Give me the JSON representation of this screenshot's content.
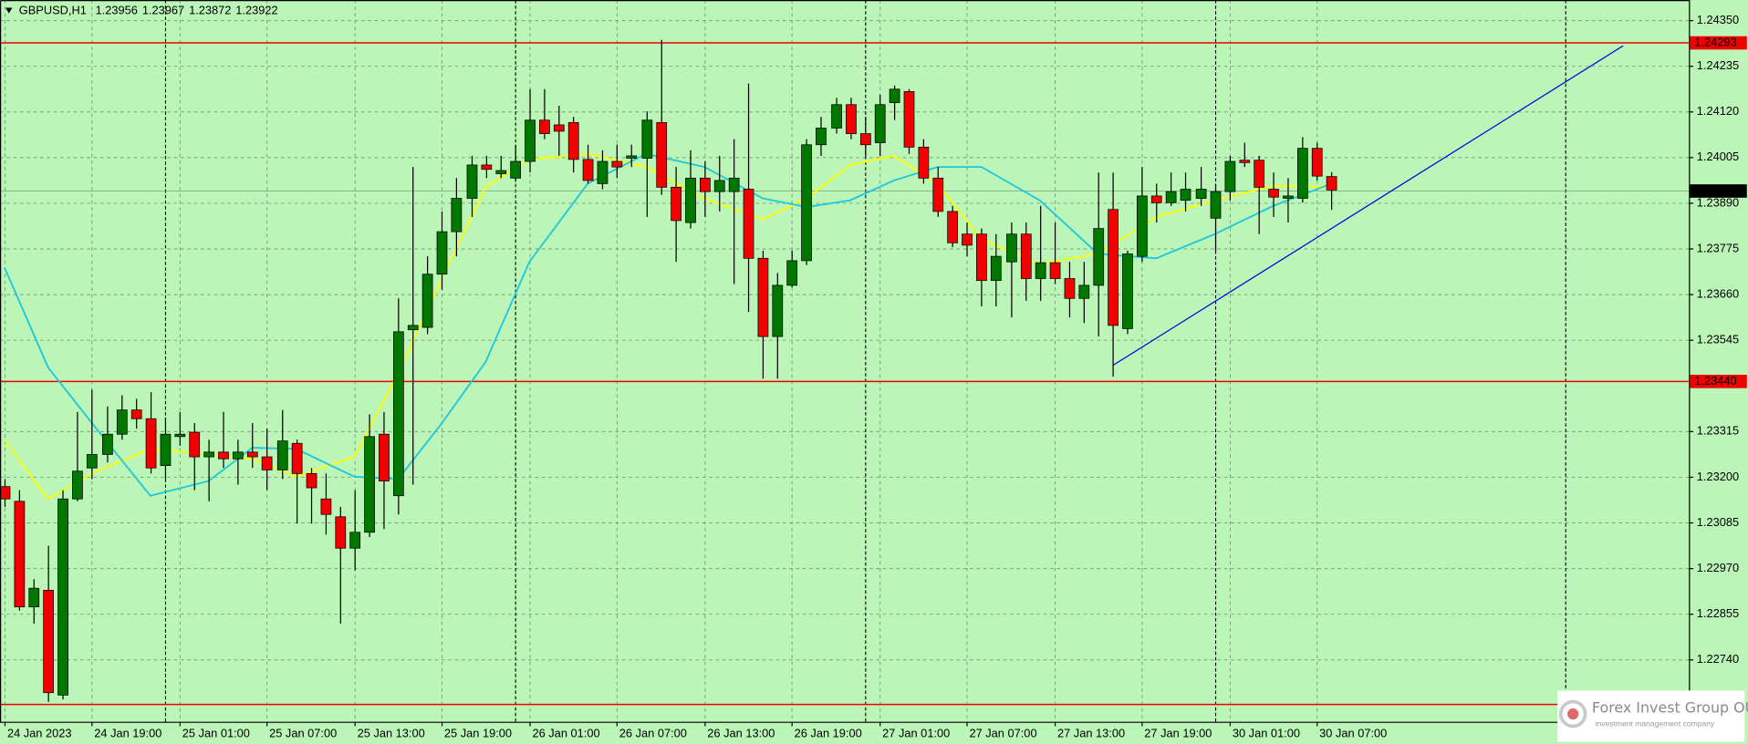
{
  "chart_data": {
    "type": "candlestick",
    "title": "GBPUSD,H1",
    "ohlc_header": [
      1.23956,
      1.23967,
      1.23872,
      1.23922
    ],
    "categories": [
      "24 Jan 2023",
      null,
      null,
      null,
      null,
      null,
      "24 Jan 19:00",
      null,
      null,
      null,
      null,
      null,
      "25 Jan 01:00",
      null,
      null,
      null,
      null,
      null,
      "25 Jan 07:00",
      null,
      null,
      null,
      null,
      null,
      "25 Jan 13:00",
      null,
      null,
      null,
      null,
      null,
      "25 Jan 19:00",
      null,
      null,
      null,
      null,
      null,
      "26 Jan 01:00",
      null,
      null,
      null,
      null,
      null,
      "26 Jan 07:00",
      null,
      null,
      null,
      null,
      null,
      "26 Jan 13:00",
      null,
      null,
      null,
      null,
      null,
      "26 Jan 19:00",
      null,
      null,
      null,
      null,
      null,
      "27 Jan 01:00",
      null,
      null,
      null,
      null,
      null,
      "27 Jan 07:00",
      null,
      null,
      null,
      null,
      null,
      "27 Jan 13:00",
      null,
      null,
      null,
      null,
      null,
      "27 Jan 19:00",
      null,
      null,
      null,
      null,
      null,
      "30 Jan 01:00",
      null,
      null,
      null,
      null,
      null,
      "30 Jan 07:00",
      null
    ],
    "open": [
      1.23175,
      1.23138,
      1.22872,
      1.22914,
      1.2265,
      1.23144,
      1.23222,
      1.23256,
      1.23307,
      1.23368,
      1.23346,
      1.23228,
      1.23301,
      1.23312,
      1.2325,
      1.23262,
      1.23245,
      1.23262,
      1.2325,
      1.23217,
      1.23284,
      1.23208,
      1.23144,
      1.23099,
      1.2302,
      1.2306,
      1.23307,
      1.23152,
      1.2357,
      1.23576,
      1.2371,
      1.23817,
      1.23901,
      1.23985,
      1.23963,
      1.23952,
      1.23994,
      1.24098,
      1.24086,
      1.24092,
      1.23999,
      1.23938,
      1.23994,
      1.24002,
      1.24002,
      1.24092,
      1.23929,
      1.2384,
      1.23952,
      1.23918,
      1.23918,
      1.23924,
      1.2375,
      1.23553,
      1.23682,
      1.23744,
      1.24036,
      1.24078,
      1.24137,
      1.24064,
      1.24041,
      1.24142,
      1.2417,
      1.2403,
      1.23952,
      1.23868,
      1.23811,
      1.23811,
      1.23694,
      1.23741,
      1.23811,
      1.23699,
      1.23739,
      1.23699,
      1.23649,
      1.23682,
      1.23873,
      1.23573,
      1.23755,
      1.23907,
      1.2389,
      1.23896,
      1.23901,
      1.23851,
      1.23918,
      1.23997,
      1.23997,
      1.23924,
      1.23901,
      1.23901,
      1.24027,
      1.23956
    ],
    "high": [
      1.23194,
      1.23166,
      1.22942,
      1.23026,
      1.23166,
      1.23363,
      1.23419,
      1.23377,
      1.23405,
      1.23396,
      1.23413,
      1.23349,
      1.23363,
      1.23335,
      1.23293,
      1.23363,
      1.23293,
      1.23335,
      1.23321,
      1.23368,
      1.23293,
      1.23222,
      1.23208,
      1.23124,
      1.23166,
      1.23357,
      1.23363,
      1.23649,
      1.2398,
      1.23755,
      1.23868,
      1.23952,
      1.24008,
      1.24008,
      1.24008,
      1.24036,
      1.24176,
      1.24176,
      1.24134,
      1.24106,
      1.24036,
      1.24022,
      1.24036,
      1.24036,
      1.2412,
      1.243,
      1.2398,
      1.24022,
      1.23994,
      1.24008,
      1.2405,
      1.2419,
      1.23769,
      1.23713,
      1.23769,
      1.2405,
      1.24106,
      1.24154,
      1.24154,
      1.24106,
      1.24162,
      1.24185,
      1.24176,
      1.2405,
      1.2398,
      1.23882,
      1.2384,
      1.23825,
      1.23811,
      1.2384,
      1.2384,
      1.23882,
      1.2384,
      1.23741,
      1.23741,
      1.23966,
      1.23966,
      1.23769,
      1.2398,
      1.23938,
      1.23966,
      1.23966,
      1.2398,
      1.23938,
      1.24008,
      1.24041,
      1.24008,
      1.23966,
      1.23952,
      1.24055,
      1.24041,
      1.23967
    ],
    "low": [
      1.23124,
      1.22863,
      1.2283,
      1.22633,
      1.22639,
      1.23138,
      1.23194,
      1.23236,
      1.23293,
      1.23321,
      1.23208,
      1.23194,
      1.23278,
      1.23166,
      1.23138,
      1.23222,
      1.2318,
      1.23222,
      1.23166,
      1.23194,
      1.23082,
      1.23082,
      1.23054,
      1.2283,
      1.22964,
      1.23048,
      1.23068,
      1.23105,
      1.2318,
      1.23559,
      1.23671,
      1.23755,
      1.23854,
      1.23952,
      1.23952,
      1.23943,
      1.23966,
      1.2405,
      1.24008,
      1.23966,
      1.23938,
      1.23924,
      1.23952,
      1.2398,
      1.23854,
      1.2391,
      1.23741,
      1.23825,
      1.23854,
      1.23868,
      1.23685,
      1.23615,
      1.23447,
      1.23447,
      1.23677,
      1.23733,
      1.24008,
      1.24064,
      1.2405,
      1.24008,
      1.24008,
      1.24098,
      1.24013,
      1.23938,
      1.23854,
      1.23778,
      1.23755,
      1.23629,
      1.23629,
      1.23601,
      1.23643,
      1.23643,
      1.23685,
      1.23601,
      1.23587,
      1.23553,
      1.23452,
      1.23559,
      1.23741,
      1.2384,
      1.23882,
      1.23868,
      1.23882,
      1.23769,
      1.23896,
      1.2398,
      1.23811,
      1.23854,
      1.2384,
      1.2389,
      1.23946,
      1.23872
    ],
    "close": [
      1.23144,
      1.22872,
      1.22919,
      1.22656,
      1.23144,
      1.23214,
      1.23256,
      1.23307,
      1.23368,
      1.23346,
      1.23222,
      1.23307,
      1.23307,
      1.2325,
      1.23262,
      1.23245,
      1.23262,
      1.2325,
      1.23217,
      1.2329,
      1.23208,
      1.23172,
      1.23105,
      1.2302,
      1.2306,
      1.23301,
      1.23189,
      1.23565,
      1.23581,
      1.2371,
      1.23817,
      1.23901,
      1.23985,
      1.23974,
      1.23971,
      1.23994,
      1.24098,
      1.24064,
      1.2407,
      1.23999,
      1.23946,
      1.23994,
      1.2398,
      1.24008,
      1.24098,
      1.23929,
      1.23845,
      1.23952,
      1.23918,
      1.23946,
      1.23952,
      1.2375,
      1.23553,
      1.23682,
      1.23744,
      1.24036,
      1.24078,
      1.24137,
      1.24064,
      1.24036,
      1.24137,
      1.24176,
      1.2403,
      1.23952,
      1.23868,
      1.23789,
      1.23783,
      1.23694,
      1.23755,
      1.23811,
      1.23699,
      1.23739,
      1.23699,
      1.23649,
      1.23682,
      1.23825,
      1.23581,
      1.23761,
      1.23907,
      1.2389,
      1.23918,
      1.23924,
      1.23924,
      1.23918,
      1.23994,
      1.23991,
      1.23929,
      1.23904,
      1.23907,
      1.24027,
      1.23957,
      1.23922
    ],
    "up_color": "#007800",
    "down_color": "#f00000",
    "wick_color": "#000000",
    "overlays": [
      {
        "color": "#ffff00",
        "x": [
          0,
          3,
          6,
          10,
          14,
          17,
          20,
          24,
          27,
          30,
          33,
          36,
          40,
          44,
          48,
          52,
          55,
          58,
          61,
          64,
          67,
          71,
          75,
          79,
          83,
          87,
          91
        ],
        "values": [
          1.23292,
          1.23144,
          1.23208,
          1.2327,
          1.23256,
          1.23245,
          1.232,
          1.2325,
          1.23461,
          1.23699,
          1.23929,
          1.23999,
          1.24013,
          1.2398,
          1.23901,
          1.23848,
          1.23901,
          1.23985,
          1.24008,
          1.23938,
          1.23797,
          1.23736,
          1.23761,
          1.23854,
          1.23896,
          1.23932,
          1.23929
        ]
      },
      {
        "color": "#1ec8dc",
        "x": [
          0,
          3,
          6,
          10,
          14,
          17,
          20,
          24,
          27,
          30,
          33,
          36,
          40,
          44,
          48,
          52,
          55,
          58,
          61,
          64,
          67,
          71,
          75,
          79,
          83,
          87,
          91
        ],
        "values": [
          1.23727,
          1.23475,
          1.23335,
          1.23152,
          1.23189,
          1.23273,
          1.2327,
          1.232,
          1.23194,
          1.23335,
          1.23489,
          1.23741,
          1.23938,
          1.24013,
          1.2398,
          1.23901,
          1.23879,
          1.23896,
          1.23946,
          1.2398,
          1.2398,
          1.23896,
          1.23761,
          1.2375,
          1.23811,
          1.23882,
          1.23938
        ]
      }
    ],
    "trendline": {
      "color": "#0000e0",
      "x": [
        76,
        111
      ],
      "values": [
        1.2348,
        1.24285
      ]
    },
    "levels": [
      {
        "value": 1.24293,
        "color": "#f00000"
      },
      {
        "value": {
          "value": 1.2344,
          "label": "1.23440"
        },
        "color": "#f00000"
      },
      {
        "value": 1.22628,
        "color": "#f00000"
      }
    ],
    "day_separators": [
      11,
      35,
      59,
      83,
      107
    ],
    "xlim": [
      -0.306,
      115.52
    ],
    "ylim": [
      1.225829,
      1.244005
    ],
    "yticks": [
      {
        "value": 1.2435,
        "label": "1.24350"
      },
      1.24235,
      {
        "value": 1.2412,
        "label": "1.24120"
      },
      1.24005,
      {
        "value": 1.2389,
        "label": "1.23890"
      },
      1.23775,
      {
        "value": 1.2366,
        "label": "1.23660"
      },
      1.23545,
      1.23315,
      {
        "value": 1.232,
        "label": "1.23200"
      },
      1.23085,
      {
        "value": 1.2297,
        "label": "1.22970"
      },
      1.22855,
      {
        "value": 1.2274,
        "label": "1.22740"
      }
    ],
    "grid": true,
    "background": "#bcf5b8",
    "watermark": {
      "name": "Forex Invest Group OU",
      "tagline": "investment management company"
    }
  }
}
